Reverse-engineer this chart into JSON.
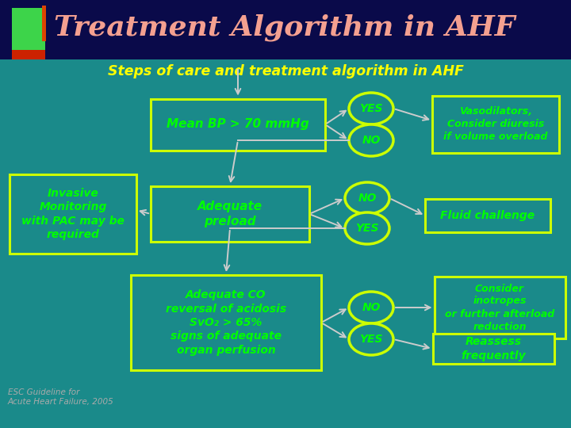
{
  "title": "Treatment Algorithm in AHF",
  "subtitle": "Steps of care and treatment algorithm in AHF",
  "bg_top": "#0a0a4a",
  "bg_main": "#1a8a8a",
  "title_color": "#f4a090",
  "subtitle_color": "#ffff00",
  "box_bg": "#1a8a8a",
  "box_border": "#ccff00",
  "box_text_color": "#00ff00",
  "circle_border": "#ccff00",
  "circle_text": "#00ff00",
  "arrow_color": "#cccccc",
  "footnote_color": "#aaaaaa",
  "box1_text": "Mean BP > 70 mmHg",
  "box2_text": "Adequate\npreload",
  "box3_text": "Adequate CO\nreversal of acidosis\nSvO₂ > 65%\nsigns of adequate\norgan perfusion",
  "box_left_text": "Invasive\nMonitoring\nwith PAC may be\nrequired",
  "box_right1_text": "Vasodilators,\nConsider diuresis\nif volume overload",
  "box_right2_text": "Fluid challenge",
  "box_right3_text": "Consider\ninotropes\nor further afterload\nreduction",
  "box_right4_text": "Reassess\nfrequently",
  "footnote": "ESC Guideline for\nAcute Heart Failure, 2005"
}
